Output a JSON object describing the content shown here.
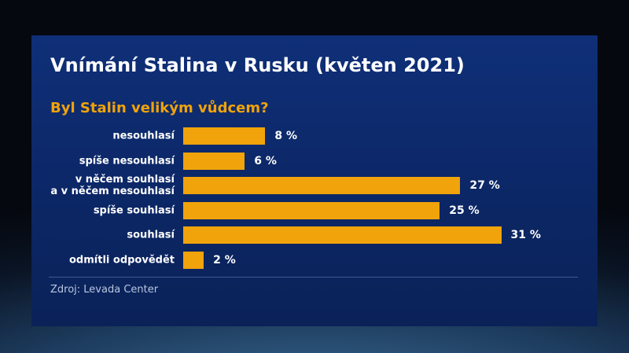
{
  "chart_data": {
    "type": "bar",
    "orientation": "horizontal",
    "title": "Vnímání Stalina v Rusku (květen 2021)",
    "subtitle": "Byl Stalin velikým vůdcem?",
    "categories": [
      "nesouhlasí",
      "spíše nesouhlasí",
      "v něčem souhlasí\na v něčem nesouhlasí",
      "spíše souhlasí",
      "souhlasí",
      "odmítli odpovědět"
    ],
    "values": [
      8,
      6,
      27,
      25,
      31,
      2
    ],
    "value_labels": [
      "8 %",
      "6 %",
      "27 %",
      "25 %",
      "31 %",
      "2 %"
    ],
    "color": "#f0a30a",
    "source": "Zdroj: Levada Center"
  }
}
